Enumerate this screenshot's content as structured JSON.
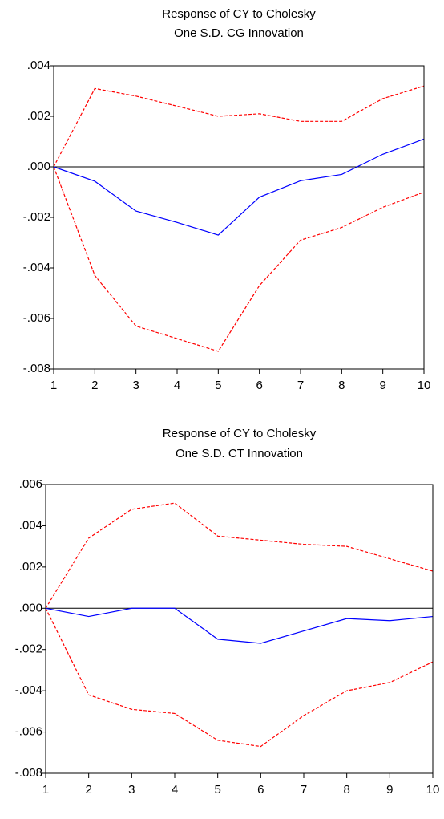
{
  "chart_data": [
    {
      "type": "line",
      "title": "Response of CY to Cholesky",
      "subtitle": "One S.D. CG Innovation",
      "x": [
        1,
        2,
        3,
        4,
        5,
        6,
        7,
        8,
        9,
        10
      ],
      "xlim": [
        1,
        10
      ],
      "xticks": [
        1,
        2,
        3,
        4,
        5,
        6,
        7,
        8,
        9,
        10
      ],
      "ylim": [
        -0.008,
        0.004
      ],
      "yticks": [
        {
          "value": -0.008,
          "label": "-.008"
        },
        {
          "value": -0.006,
          "label": "-.006"
        },
        {
          "value": -0.004,
          "label": "-.004"
        },
        {
          "value": -0.002,
          "label": "-.002"
        },
        {
          "value": 0,
          "label": ".000"
        },
        {
          "value": 0.002,
          "label": ".002"
        },
        {
          "value": 0.004,
          "label": ".004"
        }
      ],
      "series": [
        {
          "color": "#0000ff",
          "dashed": false,
          "values": [
            0,
            -0.00057,
            -0.00175,
            -0.0022,
            -0.0027,
            -0.0012,
            -0.00055,
            -0.0003,
            0.0005,
            0.0011
          ]
        },
        {
          "color": "#ff0000",
          "dashed": true,
          "values": [
            0,
            0.0031,
            0.0028,
            0.0024,
            0.002,
            0.0021,
            0.0018,
            0.0018,
            0.0027,
            0.0032
          ]
        },
        {
          "color": "#ff0000",
          "dashed": true,
          "values": [
            0,
            -0.0043,
            -0.0063,
            -0.0068,
            -0.0073,
            -0.0047,
            -0.0029,
            -0.0024,
            -0.0016,
            -0.001
          ]
        }
      ]
    },
    {
      "type": "line",
      "title": "Response of CY to Cholesky",
      "subtitle": "One S.D. CT Innovation",
      "x": [
        1,
        2,
        3,
        4,
        5,
        6,
        7,
        8,
        9,
        10
      ],
      "xlim": [
        1,
        10
      ],
      "xticks": [
        1,
        2,
        3,
        4,
        5,
        6,
        7,
        8,
        9,
        10
      ],
      "ylim": [
        -0.008,
        0.006
      ],
      "yticks": [
        {
          "value": -0.008,
          "label": "-.008"
        },
        {
          "value": -0.006,
          "label": "-.006"
        },
        {
          "value": -0.004,
          "label": "-.004"
        },
        {
          "value": -0.002,
          "label": "-.002"
        },
        {
          "value": 0,
          "label": ".000"
        },
        {
          "value": 0.002,
          "label": ".002"
        },
        {
          "value": 0.004,
          "label": ".004"
        },
        {
          "value": 0.006,
          "label": ".006"
        }
      ],
      "series": [
        {
          "color": "#0000ff",
          "dashed": false,
          "values": [
            0,
            -0.0004,
            0,
            0,
            -0.0015,
            -0.0017,
            -0.0011,
            -0.0005,
            -0.0006,
            -0.0004
          ]
        },
        {
          "color": "#ff0000",
          "dashed": true,
          "values": [
            0,
            0.0034,
            0.0048,
            0.0051,
            0.0035,
            0.0033,
            0.0031,
            0.003,
            0.0024,
            0.0018
          ]
        },
        {
          "color": "#ff0000",
          "dashed": true,
          "values": [
            0,
            -0.0042,
            -0.0049,
            -0.0051,
            -0.0064,
            -0.0067,
            -0.0052,
            -0.004,
            -0.0036,
            -0.0026
          ]
        }
      ]
    }
  ]
}
